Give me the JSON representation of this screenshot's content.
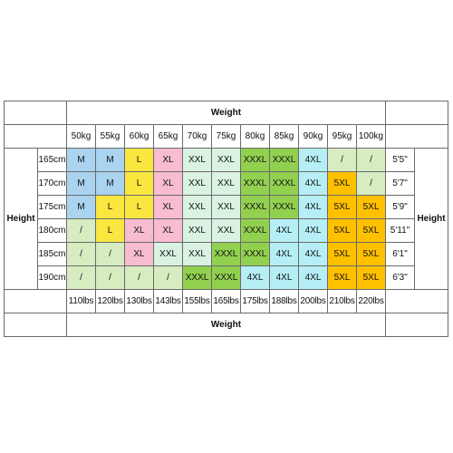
{
  "top_header": "Weight",
  "bottom_header": "Weight",
  "left_header": "Height",
  "right_header": "Height",
  "weights_kg": [
    "50kg",
    "55kg",
    "60kg",
    "65kg",
    "70kg",
    "75kg",
    "80kg",
    "85kg",
    "90kg",
    "95kg",
    "100kg"
  ],
  "weights_lbs": [
    "110lbs",
    "120lbs",
    "130lbs",
    "143lbs",
    "155lbs",
    "165lbs",
    "175lbs",
    "188lbs",
    "200lbs",
    "210lbs",
    "220lbs"
  ],
  "rows": [
    {
      "cm": "165cm",
      "ft": "5'5\"",
      "sizes": [
        "M",
        "M",
        "L",
        "XL",
        "XXL",
        "XXL",
        "XXXL",
        "XXXL",
        "4XL",
        "/",
        "/"
      ]
    },
    {
      "cm": "170cm",
      "ft": "5'7\"",
      "sizes": [
        "M",
        "M",
        "L",
        "XL",
        "XXL",
        "XXL",
        "XXXL",
        "XXXL",
        "4XL",
        "5XL",
        "/"
      ]
    },
    {
      "cm": "175cm",
      "ft": "5'9\"",
      "sizes": [
        "M",
        "L",
        "L",
        "XL",
        "XXL",
        "XXL",
        "XXXL",
        "XXXL",
        "4XL",
        "5XL",
        "5XL"
      ]
    },
    {
      "cm": "180cm",
      "ft": "5'11\"",
      "sizes": [
        "/",
        "L",
        "XL",
        "XL",
        "XXL",
        "XXL",
        "XXXL",
        "4XL",
        "4XL",
        "5XL",
        "5XL"
      ]
    },
    {
      "cm": "185cm",
      "ft": "6'1\"",
      "sizes": [
        "/",
        "/",
        "XL",
        "XXL",
        "XXL",
        "XXXL",
        "XXXL",
        "4XL",
        "4XL",
        "5XL",
        "5XL"
      ]
    },
    {
      "cm": "190cm",
      "ft": "6'3\"",
      "sizes": [
        "/",
        "/",
        "/",
        "/",
        "XXXL",
        "XXXL",
        "4XL",
        "4XL",
        "4XL",
        "5XL",
        "5XL"
      ]
    }
  ],
  "colors": {
    "M": "#a9d3ee",
    "L": "#fbe640",
    "XL": "#f7bcd0",
    "XXL": "#d9f2e2",
    "XXXL": "#92d050",
    "4XL": "#b6eef6",
    "5XL": "#ffc000",
    "/": "#d8ecc2"
  }
}
